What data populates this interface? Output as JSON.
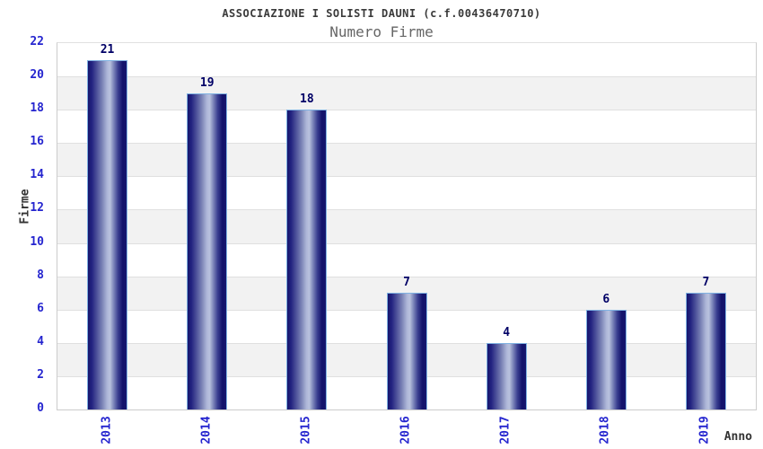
{
  "chart_data": {
    "type": "bar",
    "title": "ASSOCIAZIONE I SOLISTI DAUNI (c.f.00436470710)",
    "subtitle": "Numero Firme",
    "categories": [
      "2013",
      "2014",
      "2015",
      "2016",
      "2017",
      "2018",
      "2019"
    ],
    "values": [
      21,
      19,
      18,
      7,
      4,
      6,
      7
    ],
    "xlabel": "Anno",
    "ylabel": "Firme",
    "ylim": [
      0,
      22
    ],
    "ytick_step": 2,
    "yticks": [
      0,
      2,
      4,
      6,
      8,
      10,
      12,
      14,
      16,
      18,
      20,
      22
    ],
    "grid": true,
    "legend_position": "none",
    "bands": "alternating horizontal white/gray stripes every 2 units",
    "bar_value_labels_shown": true,
    "x_tick_rotation_deg": -90,
    "colors": {
      "bar_dark": "#16166e",
      "bar_light": "#b9c2de",
      "bar_border": "#7fb2e2",
      "tick_label": "#2525cf",
      "value_label": "#000066",
      "band_gray": "#f2f2f2",
      "gridline": "#e0e0e0",
      "frame": "#cccccc",
      "title": "#3a3a3a",
      "subtitle": "#666666",
      "axis_label": "#333333",
      "background": "#ffffff"
    }
  }
}
